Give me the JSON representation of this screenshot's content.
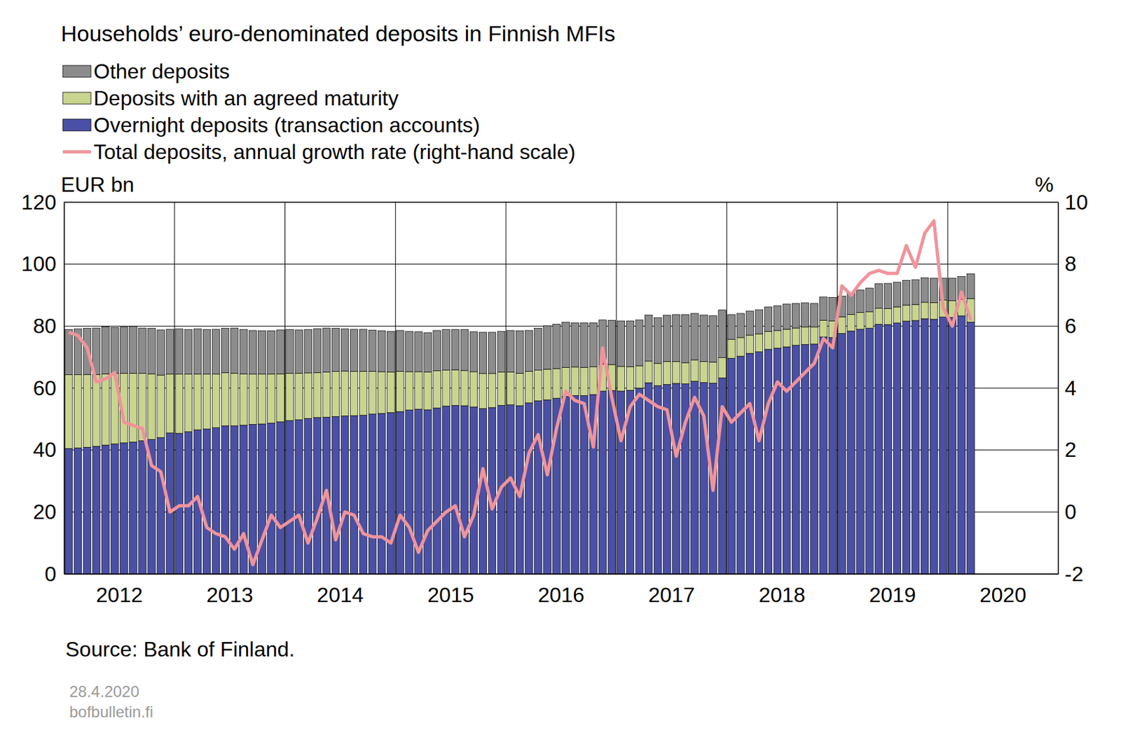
{
  "chart_data": {
    "type": "bar",
    "title": "Households’ euro-denominated deposits in Finnish MFIs",
    "ylabel": "EUR bn",
    "y2label": "%",
    "annotations": [
      "Source: Bank of Finland.",
      "28.4.2020",
      "bofbulletin.fi"
    ],
    "stacked": true,
    "grid": true,
    "legend": "top",
    "categories": [
      null,
      null,
      null,
      null,
      null,
      null,
      "2012",
      null,
      null,
      null,
      null,
      null,
      null,
      null,
      null,
      null,
      null,
      null,
      "2013",
      null,
      null,
      null,
      null,
      null,
      null,
      null,
      null,
      null,
      null,
      null,
      "2014",
      null,
      null,
      null,
      null,
      null,
      null,
      null,
      null,
      null,
      null,
      null,
      "2015",
      null,
      null,
      null,
      null,
      null,
      null,
      null,
      null,
      null,
      null,
      null,
      "2016",
      null,
      null,
      null,
      null,
      null,
      null,
      null,
      null,
      null,
      null,
      null,
      "2017",
      null,
      null,
      null,
      null,
      null,
      null,
      null,
      null,
      null,
      null,
      null,
      "2018",
      null,
      null,
      null,
      null,
      null,
      null,
      null,
      null,
      null,
      null,
      null,
      "2019",
      null,
      null,
      null,
      null,
      null,
      null,
      null,
      null,
      null,
      null,
      null,
      "2020",
      null,
      null,
      null,
      null,
      null
    ],
    "ylim": [
      0,
      120
    ],
    "yticks": [
      0,
      20,
      40,
      60,
      80,
      100,
      120
    ],
    "y2lim": [
      -2,
      10
    ],
    "y2ticks": [
      -2,
      0,
      2,
      4,
      6,
      8,
      10
    ],
    "series": [
      {
        "name": "Overnight deposits (transaction accounts)",
        "type": "bar",
        "color": "#4a50a6",
        "values": [
          40.5,
          40.7,
          40.9,
          41.2,
          41.6,
          42.0,
          42.3,
          42.6,
          43.0,
          43.4,
          44.0,
          45.5,
          45.4,
          45.9,
          46.5,
          46.8,
          47.2,
          47.8,
          47.8,
          48.0,
          48.3,
          48.4,
          48.7,
          49.1,
          49.5,
          49.8,
          50.2,
          50.5,
          50.6,
          50.8,
          51.0,
          51.1,
          51.2,
          51.6,
          51.8,
          52.1,
          52.4,
          52.9,
          53.2,
          53.0,
          53.6,
          54.2,
          54.4,
          54.3,
          53.9,
          53.4,
          53.7,
          54.4,
          54.6,
          54.3,
          55.2,
          55.9,
          56.2,
          56.7,
          57.3,
          57.6,
          57.6,
          57.9,
          59.0,
          59.2,
          59.0,
          59.3,
          60.0,
          61.7,
          60.8,
          61.2,
          61.5,
          61.4,
          62.2,
          61.8,
          61.6,
          63.3,
          69.6,
          70.3,
          71.2,
          71.7,
          72.5,
          72.9,
          73.3,
          73.8,
          74.1,
          74.2,
          76.5,
          76.3,
          77.6,
          78.4,
          79.0,
          79.3,
          80.6,
          80.5,
          81.0,
          81.6,
          81.8,
          82.4,
          82.2,
          82.9,
          82.8,
          83.3,
          81.3,
          null,
          null,
          null,
          null,
          null,
          null,
          null,
          null,
          null
        ]
      },
      {
        "name": "Deposits with an agreed maturity",
        "type": "bar",
        "color": "#c9d48f",
        "values": [
          23.8,
          23.6,
          23.5,
          23.2,
          23.0,
          22.8,
          22.5,
          22.2,
          21.8,
          21.2,
          20.2,
          19.0,
          19.1,
          18.6,
          18.0,
          17.7,
          17.3,
          17.2,
          17.0,
          16.6,
          16.2,
          16.1,
          15.8,
          15.5,
          15.3,
          15.0,
          14.7,
          14.5,
          14.6,
          14.6,
          14.5,
          14.3,
          14.2,
          13.8,
          13.5,
          13.1,
          13.0,
          12.4,
          12.1,
          12.2,
          12.0,
          11.6,
          11.5,
          11.4,
          11.4,
          11.3,
          11.0,
          10.8,
          10.6,
          10.5,
          10.2,
          9.9,
          9.9,
          9.6,
          9.4,
          9.2,
          9.1,
          9.0,
          8.7,
          8.4,
          8.0,
          7.6,
          7.2,
          7.0,
          7.2,
          7.4,
          7.1,
          6.8,
          6.9,
          6.8,
          6.8,
          6.5,
          6.1,
          6.0,
          5.9,
          5.8,
          5.8,
          5.7,
          5.7,
          5.6,
          5.6,
          5.5,
          5.4,
          5.4,
          5.4,
          5.4,
          5.4,
          5.3,
          5.2,
          5.2,
          5.2,
          5.2,
          5.2,
          5.3,
          5.4,
          5.5,
          5.4,
          5.4,
          7.6,
          null,
          null,
          null,
          null,
          null,
          null,
          null,
          null,
          null
        ]
      },
      {
        "name": "Other deposits",
        "type": "bar",
        "color": "#8c8c8c",
        "values": [
          14.6,
          14.8,
          14.9,
          15.0,
          15.2,
          14.8,
          14.9,
          15.1,
          14.6,
          14.7,
          14.6,
          14.5,
          14.6,
          14.4,
          14.6,
          14.4,
          14.5,
          14.3,
          14.6,
          14.3,
          14.1,
          14.0,
          14.0,
          14.2,
          14.1,
          14.0,
          14.0,
          14.2,
          14.2,
          13.9,
          13.6,
          13.6,
          13.6,
          13.3,
          13.2,
          13.1,
          13.2,
          13.0,
          12.9,
          12.7,
          13.0,
          13.1,
          13.0,
          13.2,
          12.9,
          13.3,
          13.3,
          13.1,
          13.4,
          13.7,
          13.2,
          13.5,
          14.0,
          14.3,
          14.6,
          14.3,
          14.4,
          14.2,
          14.3,
          14.3,
          14.7,
          14.8,
          14.8,
          14.9,
          14.7,
          14.9,
          15.1,
          15.5,
          15.0,
          15.0,
          15.0,
          15.4,
          8.0,
          7.8,
          7.8,
          7.8,
          7.9,
          8.0,
          8.1,
          7.9,
          7.8,
          7.6,
          7.5,
          7.6,
          6.7,
          7.0,
          7.3,
          7.7,
          7.9,
          8.1,
          8.0,
          8.0,
          8.0,
          7.9,
          7.9,
          7.1,
          7.3,
          7.3,
          8.0,
          null,
          null,
          null,
          null,
          null,
          null,
          null,
          null,
          null
        ]
      },
      {
        "name": "Total deposits, annual growth rate (right-hand scale)",
        "type": "line",
        "axis": "y2",
        "color": "#f0939b",
        "values": [
          5.8,
          5.7,
          5.3,
          4.2,
          4.3,
          4.5,
          2.9,
          2.8,
          2.7,
          1.5,
          1.3,
          0.0,
          0.2,
          0.2,
          0.5,
          -0.5,
          -0.7,
          -0.8,
          -1.2,
          -0.7,
          -1.7,
          -0.9,
          -0.1,
          -0.5,
          -0.3,
          -0.1,
          -1.0,
          -0.2,
          0.7,
          -0.9,
          0.0,
          -0.1,
          -0.7,
          -0.8,
          -0.8,
          -1.0,
          -0.1,
          -0.5,
          -1.3,
          -0.6,
          -0.3,
          0.0,
          0.2,
          -0.8,
          -0.1,
          1.4,
          0.1,
          0.8,
          1.1,
          0.5,
          1.9,
          2.5,
          1.2,
          2.7,
          3.9,
          3.6,
          3.5,
          2.1,
          5.3,
          3.7,
          2.3,
          3.4,
          3.8,
          3.6,
          3.4,
          3.3,
          1.8,
          2.9,
          3.7,
          3.1,
          0.7,
          3.4,
          2.9,
          3.2,
          3.5,
          2.3,
          3.5,
          4.2,
          3.9,
          4.2,
          4.5,
          4.8,
          5.6,
          5.3,
          7.3,
          7.0,
          7.4,
          7.7,
          7.8,
          7.7,
          7.7,
          8.6,
          7.9,
          9.0,
          9.4,
          6.6,
          6.0,
          7.1,
          6.2,
          null,
          null,
          null,
          null,
          null,
          null,
          null,
          null,
          null
        ]
      }
    ]
  }
}
